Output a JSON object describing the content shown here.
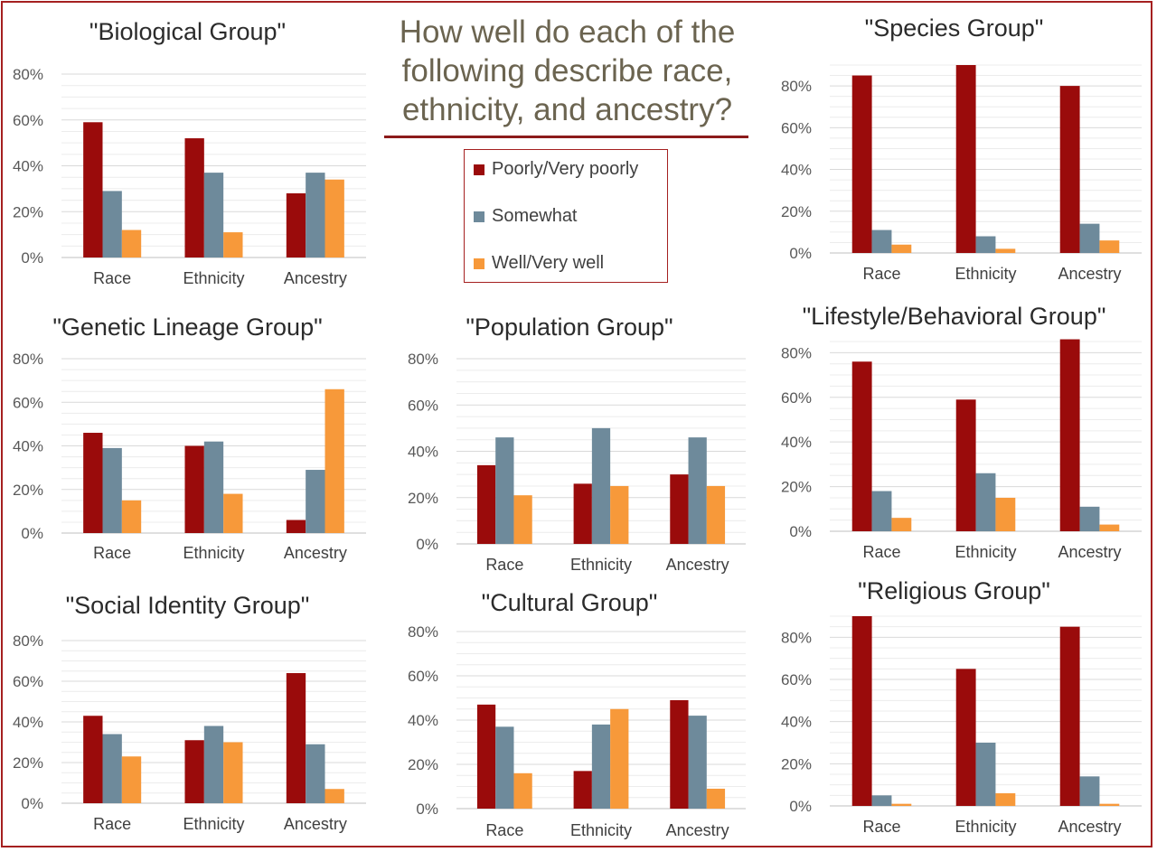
{
  "title": "How well do each of the following describe race, ethnicity, and ancestry?",
  "legend": {
    "items": [
      {
        "label": "Poorly/Very poorly",
        "color": "#9a0b0b"
      },
      {
        "label": "Somewhat",
        "color": "#6e8a9b"
      },
      {
        "label": "Well/Very well",
        "color": "#f7993a"
      }
    ]
  },
  "chart_data": [
    {
      "type": "bar",
      "title": "\"Biological Group\"",
      "categories": [
        "Race",
        "Ethnicity",
        "Ancestry"
      ],
      "ylim": [
        0,
        80
      ],
      "ytick_labels": [
        "0%",
        "20%",
        "40%",
        "60%",
        "80%"
      ],
      "series": [
        {
          "name": "Poorly/Very poorly",
          "values": [
            59,
            52,
            28
          ]
        },
        {
          "name": "Somewhat",
          "values": [
            29,
            37,
            37
          ]
        },
        {
          "name": "Well/Very well",
          "values": [
            12,
            11,
            34
          ]
        }
      ]
    },
    {
      "type": "bar",
      "title": "\"Species Group\"",
      "categories": [
        "Race",
        "Ethnicity",
        "Ancestry"
      ],
      "ylim": [
        0,
        90
      ],
      "ytick_labels": [
        "0%",
        "20%",
        "40%",
        "60%",
        "80%"
      ],
      "series": [
        {
          "name": "Poorly/Very poorly",
          "values": [
            85,
            90,
            80
          ]
        },
        {
          "name": "Somewhat",
          "values": [
            11,
            8,
            14
          ]
        },
        {
          "name": "Well/Very well",
          "values": [
            4,
            2,
            6
          ]
        }
      ]
    },
    {
      "type": "bar",
      "title": "\"Genetic Lineage Group\"",
      "categories": [
        "Race",
        "Ethnicity",
        "Ancestry"
      ],
      "ylim": [
        0,
        80
      ],
      "ytick_labels": [
        "0%",
        "20%",
        "40%",
        "60%",
        "80%"
      ],
      "series": [
        {
          "name": "Poorly/Very poorly",
          "values": [
            46,
            40,
            6
          ]
        },
        {
          "name": "Somewhat",
          "values": [
            39,
            42,
            29
          ]
        },
        {
          "name": "Well/Very well",
          "values": [
            15,
            18,
            66
          ]
        }
      ]
    },
    {
      "type": "bar",
      "title": "\"Population Group\"",
      "categories": [
        "Race",
        "Ethnicity",
        "Ancestry"
      ],
      "ylim": [
        0,
        80
      ],
      "ytick_labels": [
        "0%",
        "20%",
        "40%",
        "60%",
        "80%"
      ],
      "series": [
        {
          "name": "Poorly/Very poorly",
          "values": [
            34,
            26,
            30
          ]
        },
        {
          "name": "Somewhat",
          "values": [
            46,
            50,
            46
          ]
        },
        {
          "name": "Well/Very well",
          "values": [
            21,
            25,
            25
          ]
        }
      ]
    },
    {
      "type": "bar",
      "title": "\"Lifestyle/Behavioral Group\"",
      "categories": [
        "Race",
        "Ethnicity",
        "Ancestry"
      ],
      "ylim": [
        0,
        85
      ],
      "ytick_labels": [
        "0%",
        "20%",
        "40%",
        "60%",
        "80%"
      ],
      "series": [
        {
          "name": "Poorly/Very poorly",
          "values": [
            76,
            59,
            86
          ]
        },
        {
          "name": "Somewhat",
          "values": [
            18,
            26,
            11
          ]
        },
        {
          "name": "Well/Very well",
          "values": [
            6,
            15,
            3
          ]
        }
      ]
    },
    {
      "type": "bar",
      "title": "\"Social Identity Group\"",
      "categories": [
        "Race",
        "Ethnicity",
        "Ancestry"
      ],
      "ylim": [
        0,
        80
      ],
      "ytick_labels": [
        "0%",
        "20%",
        "40%",
        "60%",
        "80%"
      ],
      "series": [
        {
          "name": "Poorly/Very poorly",
          "values": [
            43,
            31,
            64
          ]
        },
        {
          "name": "Somewhat",
          "values": [
            34,
            38,
            29
          ]
        },
        {
          "name": "Well/Very well",
          "values": [
            23,
            30,
            7
          ]
        }
      ]
    },
    {
      "type": "bar",
      "title": "\"Cultural Group\"",
      "categories": [
        "Race",
        "Ethnicity",
        "Ancestry"
      ],
      "ylim": [
        0,
        80
      ],
      "ytick_labels": [
        "0%",
        "20%",
        "40%",
        "60%",
        "80%"
      ],
      "series": [
        {
          "name": "Poorly/Very poorly",
          "values": [
            47,
            17,
            49
          ]
        },
        {
          "name": "Somewhat",
          "values": [
            37,
            38,
            42
          ]
        },
        {
          "name": "Well/Very well",
          "values": [
            16,
            45,
            9
          ]
        }
      ]
    },
    {
      "type": "bar",
      "title": "\"Religious Group\"",
      "categories": [
        "Race",
        "Ethnicity",
        "Ancestry"
      ],
      "ylim": [
        0,
        90
      ],
      "ytick_labels": [
        "0%",
        "20%",
        "40%",
        "60%",
        "80%"
      ],
      "series": [
        {
          "name": "Poorly/Very poorly",
          "values": [
            90,
            65,
            85
          ]
        },
        {
          "name": "Somewhat",
          "values": [
            5,
            30,
            14
          ]
        },
        {
          "name": "Well/Very well",
          "values": [
            1,
            6,
            1
          ]
        }
      ]
    }
  ]
}
